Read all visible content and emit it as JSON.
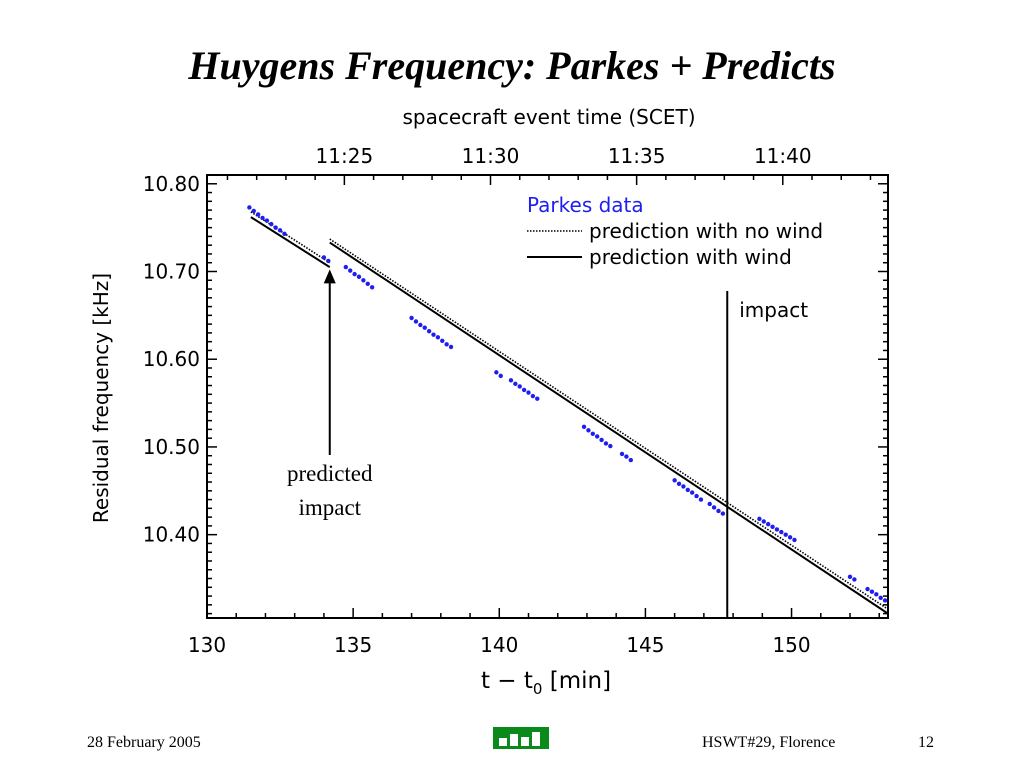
{
  "slide": {
    "title": "Huygens Frequency: Parkes + Predicts",
    "footer_date": "28 February 2005",
    "footer_event": "HSWT#29, Florence",
    "page_number": "12"
  },
  "chart_data": {
    "type": "scatter",
    "top_axis_label": "spacecraft event time (SCET)",
    "top_ticks": [
      {
        "label": "11:25",
        "x": 134.7
      },
      {
        "label": "11:30",
        "x": 139.7
      },
      {
        "label": "11:35",
        "x": 144.7
      },
      {
        "label": "11:40",
        "x": 149.7
      }
    ],
    "xlabel": "t − t",
    "xlabel_sub": "0",
    "xlabel_tail": " [min]",
    "ylabel": "Residual frequency [kHz]",
    "xlim": [
      130,
      153.3
    ],
    "ylim": [
      10.305,
      10.81
    ],
    "x_ticks": [
      130,
      135,
      140,
      145,
      150
    ],
    "x_tick_labels": [
      "130",
      "135",
      "140",
      "145",
      "150"
    ],
    "y_ticks": [
      10.4,
      10.5,
      10.6,
      10.7,
      10.8
    ],
    "y_tick_labels": [
      "10.40",
      "10.50",
      "10.60",
      "10.70",
      "10.80"
    ],
    "legend": {
      "position": "top-right",
      "entries": [
        "Parkes data",
        "prediction with no wind",
        "prediction with wind"
      ]
    },
    "colors": {
      "parkes": "#1e1ef0",
      "lines": "#000000"
    },
    "series": [
      {
        "name": "Parkes data",
        "points": [
          [
            131.45,
            10.773
          ],
          [
            131.6,
            10.769
          ],
          [
            131.75,
            10.765
          ],
          [
            131.9,
            10.761
          ],
          [
            132.05,
            10.758
          ],
          [
            132.2,
            10.754
          ],
          [
            132.35,
            10.75
          ],
          [
            132.5,
            10.747
          ],
          [
            132.65,
            10.743
          ],
          [
            134.0,
            10.716
          ],
          [
            134.15,
            10.712
          ],
          [
            134.75,
            10.705
          ],
          [
            134.9,
            10.701
          ],
          [
            135.05,
            10.697
          ],
          [
            135.2,
            10.694
          ],
          [
            135.35,
            10.69
          ],
          [
            135.5,
            10.686
          ],
          [
            135.65,
            10.682
          ],
          [
            137.0,
            10.647
          ],
          [
            137.15,
            10.643
          ],
          [
            137.3,
            10.639
          ],
          [
            137.45,
            10.636
          ],
          [
            137.6,
            10.632
          ],
          [
            137.75,
            10.628
          ],
          [
            137.9,
            10.625
          ],
          [
            138.05,
            10.621
          ],
          [
            138.2,
            10.617
          ],
          [
            138.35,
            10.614
          ],
          [
            139.9,
            10.585
          ],
          [
            140.05,
            10.581
          ],
          [
            140.4,
            10.576
          ],
          [
            140.55,
            10.572
          ],
          [
            140.7,
            10.569
          ],
          [
            140.85,
            10.565
          ],
          [
            141.0,
            10.562
          ],
          [
            141.15,
            10.558
          ],
          [
            141.3,
            10.555
          ],
          [
            142.9,
            10.523
          ],
          [
            143.05,
            10.519
          ],
          [
            143.2,
            10.515
          ],
          [
            143.35,
            10.512
          ],
          [
            143.5,
            10.508
          ],
          [
            143.65,
            10.504
          ],
          [
            143.8,
            10.501
          ],
          [
            144.2,
            10.492
          ],
          [
            144.35,
            10.489
          ],
          [
            144.5,
            10.485
          ],
          [
            146.0,
            10.462
          ],
          [
            146.15,
            10.458
          ],
          [
            146.3,
            10.455
          ],
          [
            146.45,
            10.451
          ],
          [
            146.6,
            10.448
          ],
          [
            146.75,
            10.444
          ],
          [
            146.9,
            10.44
          ],
          [
            147.2,
            10.435
          ],
          [
            147.35,
            10.431
          ],
          [
            147.5,
            10.427
          ],
          [
            147.65,
            10.424
          ],
          [
            148.9,
            10.418
          ],
          [
            149.05,
            10.415
          ],
          [
            149.2,
            10.412
          ],
          [
            149.35,
            10.409
          ],
          [
            149.5,
            10.406
          ],
          [
            149.65,
            10.403
          ],
          [
            149.8,
            10.4
          ],
          [
            149.95,
            10.397
          ],
          [
            150.1,
            10.394
          ],
          [
            152.0,
            10.352
          ],
          [
            152.15,
            10.349
          ],
          [
            152.6,
            10.338
          ],
          [
            152.75,
            10.335
          ],
          [
            152.9,
            10.332
          ],
          [
            153.05,
            10.328
          ],
          [
            153.2,
            10.325
          ]
        ]
      },
      {
        "name": "prediction with no wind",
        "segments": [
          [
            [
              131.5,
              10.768
            ],
            [
              134.2,
              10.71
            ]
          ],
          [
            [
              134.2,
              10.737
            ],
            [
              153.3,
              10.315
            ]
          ]
        ]
      },
      {
        "name": "prediction with wind",
        "segments": [
          [
            [
              131.5,
              10.762
            ],
            [
              134.2,
              10.705
            ]
          ],
          [
            [
              134.2,
              10.733
            ],
            [
              153.3,
              10.31
            ]
          ]
        ]
      }
    ],
    "annotations": [
      {
        "text": "impact",
        "x": 147.8
      },
      {
        "text": "predicted",
        "text2": "impact",
        "x": 134.2,
        "y": 10.707
      }
    ]
  }
}
